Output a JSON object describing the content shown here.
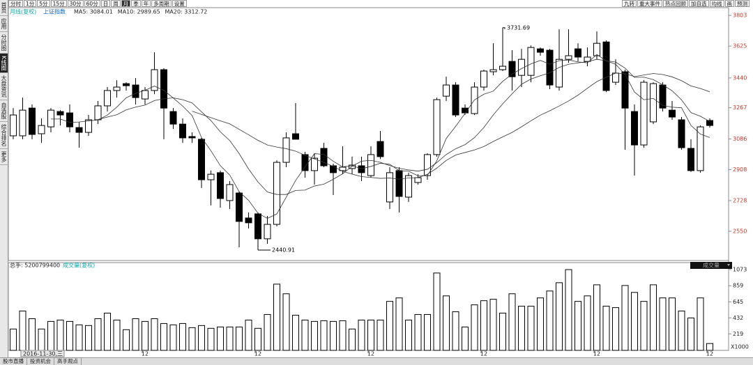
{
  "toolbar": {
    "left": [
      "分时",
      "1分",
      "5分",
      "15分",
      "30分",
      "60分",
      "日",
      "周",
      "月",
      "季",
      "年",
      "多周期",
      "设置"
    ],
    "selected": "月",
    "right": [
      "九转",
      "重大事件",
      "热点回顾",
      "加自选",
      "均线",
      "画",
      "预测"
    ]
  },
  "sidebar": [
    "首页",
    "应用",
    "分时图",
    "K线图",
    "大盘资讯",
    "自选股",
    "综合排名",
    "更多"
  ],
  "sidebar_selected": "K线图",
  "status_bar": [
    "股市直播",
    "投资机会",
    "高手观点"
  ],
  "chart_data": [
    {
      "type": "candlestick",
      "title": "上证指数",
      "subtitle": "月线(复权)",
      "ma_labels": [
        "MA5: 3084.01",
        "MA10: 2989.65",
        "MA20: 3312.72"
      ],
      "annotations": [
        "3731.69",
        "2440.91"
      ],
      "cursor_date": "2016-11-30,三",
      "categories": [
        null,
        null,
        null,
        null,
        null,
        null,
        null,
        null,
        null,
        null,
        null,
        null,
        null,
        null,
        "12",
        null,
        null,
        null,
        null,
        null,
        null,
        null,
        null,
        null,
        null,
        null,
        "12",
        null,
        null,
        null,
        null,
        null,
        null,
        null,
        null,
        null,
        null,
        null,
        "12",
        null,
        null,
        null,
        null,
        null,
        null,
        null,
        null,
        null,
        null,
        null,
        "12",
        null,
        null,
        null,
        null,
        null,
        null,
        null,
        null,
        null,
        null,
        null,
        "12",
        null,
        null,
        null,
        null,
        null,
        null,
        null,
        null,
        null,
        null,
        null,
        "12"
      ],
      "open": [
        3104,
        3104,
        3265,
        3116,
        3156,
        3245,
        3237,
        3152,
        3124,
        3197,
        3278,
        3367,
        3407,
        3399,
        3318,
        3367,
        3488,
        3245,
        3172,
        3100,
        3084,
        2849,
        2890,
        2728,
        2772,
        2627,
        2651,
        2506,
        2590,
        2950,
        3116,
        2995,
        2902,
        3031,
        2930,
        2902,
        2914,
        2930,
        2873,
        3071,
        2720,
        2902,
        2748,
        2833,
        2873,
        2995,
        3334,
        3399,
        3265,
        3233,
        3387,
        3476,
        3488,
        3536,
        3455,
        3455,
        3609,
        3601,
        3387,
        3548,
        3609,
        3536,
        3569,
        3649,
        3415,
        3476,
        3245,
        3051,
        3185,
        3399,
        3253,
        3197,
        3031,
        2902,
        3193
      ],
      "high": [
        3265,
        3326,
        3286,
        3205,
        3265,
        3253,
        3286,
        3185,
        3225,
        3306,
        3387,
        3427,
        3415,
        3439,
        3387,
        3589,
        3496,
        3265,
        3205,
        3124,
        3092,
        2902,
        2902,
        2841,
        2780,
        2659,
        2659,
        2639,
        2962,
        3124,
        3294,
        3011,
        3003,
        3063,
        2942,
        3043,
        2983,
        2983,
        3043,
        3132,
        2922,
        2922,
        2890,
        2881,
        3003,
        3326,
        3447,
        3415,
        3286,
        3415,
        3488,
        3641,
        3731.69,
        3601,
        3609,
        3629,
        3617,
        3609,
        3722,
        3722,
        3641,
        3617,
        3710,
        3658,
        3548,
        3488,
        3286,
        3427,
        3415,
        3415,
        3306,
        3213,
        3084,
        3164,
        3205
      ],
      "low": [
        3084,
        3084,
        3084,
        3063,
        3124,
        3164,
        3124,
        3035,
        3104,
        3172,
        3245,
        3326,
        3367,
        3286,
        3286,
        3346,
        3084,
        3144,
        3063,
        3063,
        2801,
        2700,
        2687,
        2679,
        2457,
        2566,
        2440.91,
        2477,
        2578,
        2922,
        3084,
        2861,
        2821,
        2922,
        2760,
        2881,
        2881,
        2841,
        2861,
        2970,
        2679,
        2659,
        2720,
        2821,
        2849,
        2983,
        3306,
        3213,
        3225,
        3225,
        3367,
        3455,
        3480,
        3367,
        3387,
        3415,
        3569,
        3375,
        3367,
        3528,
        3536,
        3508,
        3548,
        3358,
        3399,
        3023,
        2873,
        3035,
        3172,
        3245,
        3197,
        3023,
        2894,
        2890,
        3152
      ],
      "close": [
        3225,
        3253,
        3112,
        3164,
        3253,
        3225,
        3156,
        3124,
        3197,
        3278,
        3367,
        3387,
        3395,
        3326,
        3367,
        3488,
        3265,
        3172,
        3092,
        3092,
        2849,
        2881,
        2740,
        2821,
        2607,
        2599,
        2506,
        2590,
        2950,
        3092,
        3084,
        2902,
        2974,
        2930,
        2890,
        2922,
        2934,
        2890,
        2995,
        2983,
        2890,
        2752,
        2873,
        2861,
        2995,
        3314,
        3399,
        3225,
        3237,
        3387,
        3480,
        3488,
        3508,
        3447,
        3548,
        3617,
        3589,
        3399,
        3548,
        3569,
        3561,
        3561,
        3641,
        3367,
        3468,
        3265,
        3051,
        3415,
        3407,
        3265,
        3213,
        3035,
        2902,
        3156,
        3164
      ],
      "ylim": [
        2380,
        3848
      ],
      "yticks": [
        3803,
        3625,
        3440,
        3267,
        3086,
        2908,
        2728,
        2550
      ]
    },
    {
      "type": "bar",
      "title": "总手: 5200799400",
      "subtitle": "成交量(复权)",
      "indicator": "成交量",
      "unit_label": "X1000",
      "values": [
        284,
        523,
        421,
        284,
        385,
        403,
        385,
        339,
        330,
        421,
        495,
        403,
        275,
        421,
        385,
        421,
        357,
        339,
        357,
        302,
        330,
        293,
        311,
        311,
        311,
        403,
        293,
        477,
        880,
        752,
        467,
        403,
        385,
        394,
        385,
        394,
        284,
        403,
        403,
        403,
        651,
        697,
        403,
        477,
        477,
        1028,
        724,
        513,
        311,
        605,
        660,
        679,
        495,
        752,
        587,
        587,
        697,
        789,
        899,
        1073,
        651,
        724,
        871,
        587,
        568,
        862,
        770,
        651,
        871,
        697,
        697,
        523,
        431,
        697,
        91
      ],
      "ylim": [
        0,
        1166
      ],
      "yticks": [
        219,
        432,
        645,
        859,
        1073
      ]
    }
  ]
}
